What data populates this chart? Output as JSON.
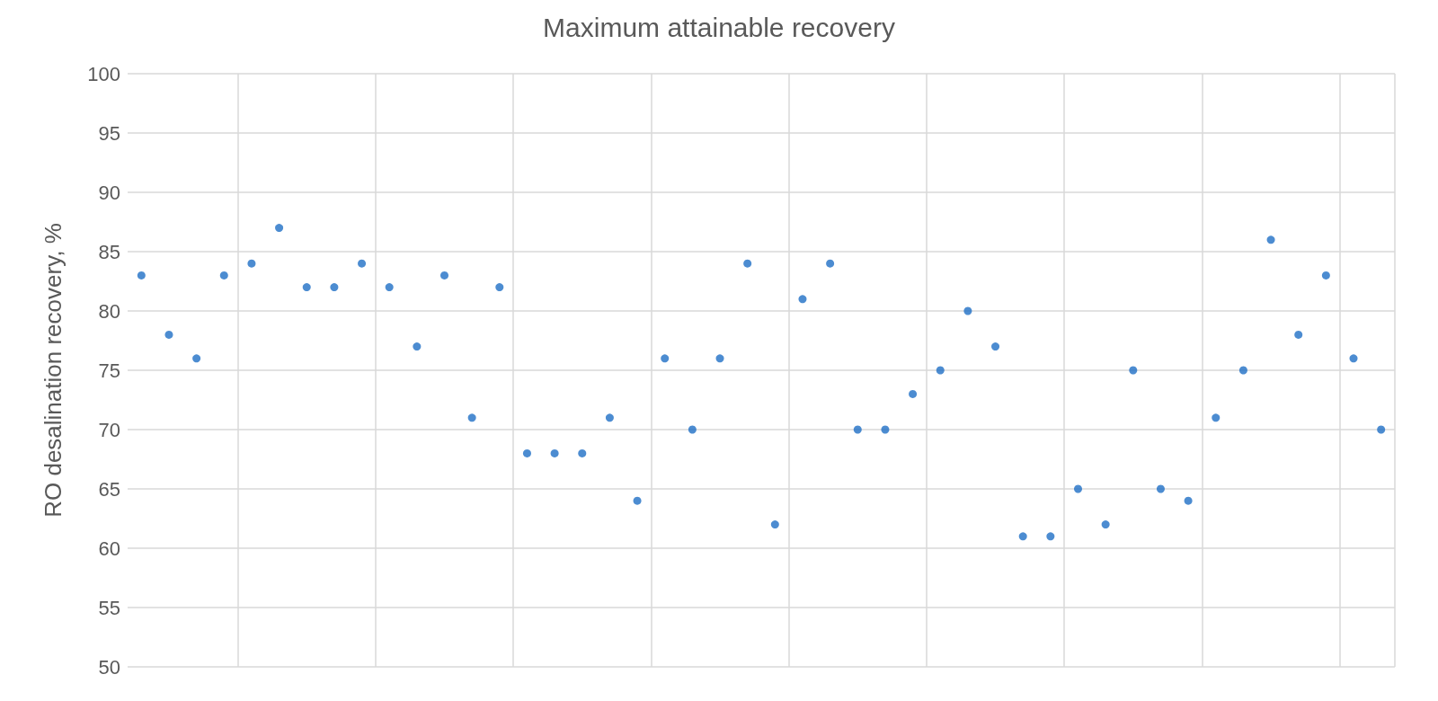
{
  "chart_data": {
    "type": "scatter",
    "title": "Maximum attainable recovery",
    "ylabel": "RO desalination recovery, %",
    "categories": [
      null,
      null,
      null,
      null,
      null,
      null,
      null,
      null,
      null,
      null,
      null,
      null,
      null,
      null,
      null,
      null,
      null,
      null,
      null,
      null,
      null,
      null,
      null,
      null,
      null,
      null,
      null,
      null,
      null,
      null,
      null,
      null,
      null,
      null,
      null,
      null,
      null,
      null,
      null,
      null,
      null,
      null,
      null,
      null,
      null,
      null
    ],
    "series": [
      {
        "color": "#1f6fc5",
        "values": [
          83,
          78,
          76,
          83,
          84,
          87,
          82,
          82,
          84,
          82,
          77,
          83,
          71,
          82,
          68,
          68,
          68,
          71,
          64,
          76,
          70,
          76,
          84,
          62,
          81,
          84,
          70,
          70,
          73,
          75,
          80,
          77,
          61,
          61,
          65,
          62,
          75,
          65,
          64,
          71,
          75,
          86,
          78,
          83,
          76,
          70
        ]
      }
    ],
    "ylim": [
      50,
      100
    ],
    "yticks": [
      50,
      55,
      60,
      65,
      70,
      75,
      80,
      85,
      90,
      95,
      100
    ],
    "grid": true,
    "marker": "circle",
    "tick_labels": "y"
  }
}
